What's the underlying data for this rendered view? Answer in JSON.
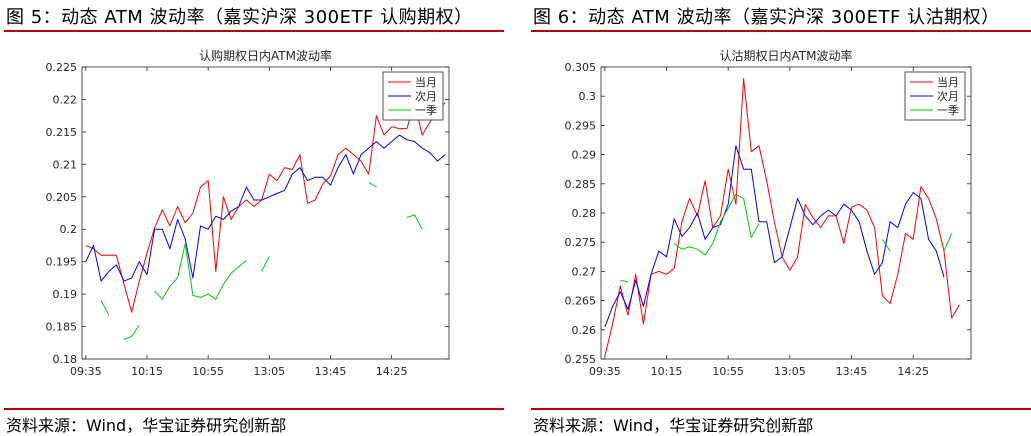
{
  "panels": [
    {
      "figure_title": "图 5：动态 ATM 波动率（嘉实沪深 300ETF 认购期权）",
      "source": "资料来源：Wind，华宝证券研究创新部"
    },
    {
      "figure_title": "图 6：动态 ATM 波动率（嘉实沪深 300ETF 认沽期权）",
      "source": "资料来源：Wind，华宝证券研究创新部"
    }
  ],
  "chart_data": [
    {
      "type": "line",
      "title": "认购期权日内ATM波动率",
      "xlabel": "",
      "ylabel": "",
      "x_tick_labels": [
        "09:35",
        "10:15",
        "10:55",
        "13:05",
        "13:45",
        "14:25"
      ],
      "x_tick_positions": [
        0,
        8,
        16,
        24,
        32,
        40
      ],
      "xlim": [
        -0.5,
        47.5
      ],
      "ylim": [
        0.18,
        0.225
      ],
      "y_ticks": [
        0.18,
        0.185,
        0.19,
        0.195,
        0.2,
        0.205,
        0.21,
        0.215,
        0.22,
        0.225
      ],
      "y_tick_labels": [
        "0.18",
        "0.185",
        "0.19",
        "0.195",
        "0.2",
        "0.205",
        "0.21",
        "0.215",
        "0.22",
        "0.225"
      ],
      "legend_position": "top-right",
      "series": [
        {
          "name": "当月",
          "color": "#ff0000",
          "values": [
            0.1975,
            0.197,
            0.196,
            0.196,
            0.196,
            0.1915,
            0.1872,
            0.192,
            0.1963,
            0.2002,
            0.203,
            0.2005,
            0.2035,
            0.201,
            0.2025,
            0.2065,
            0.2075,
            0.1935,
            0.205,
            0.2015,
            0.2035,
            0.2045,
            0.2035,
            0.2045,
            0.2085,
            0.2075,
            0.2095,
            0.2092,
            0.2115,
            0.204,
            0.2045,
            0.207,
            0.2082,
            0.2115,
            0.2125,
            0.2115,
            0.2105,
            0.2085,
            0.2175,
            0.2145,
            0.2158,
            0.2155,
            0.2155,
            0.2195,
            0.2145,
            0.2165,
            0.2185,
            0.2195
          ]
        },
        {
          "name": "次月",
          "color": "#0000ff",
          "values": [
            0.195,
            0.1975,
            0.192,
            0.1935,
            0.1945,
            0.192,
            0.1925,
            0.195,
            0.193,
            0.2,
            0.2,
            0.197,
            0.2015,
            0.1985,
            0.1925,
            0.2005,
            0.2,
            0.202,
            0.2015,
            0.2028,
            0.2035,
            0.2065,
            0.2045,
            0.2045,
            0.205,
            0.2055,
            0.206,
            0.2085,
            0.2095,
            0.2075,
            0.208,
            0.208,
            0.2068,
            0.2095,
            0.2115,
            0.2085,
            0.2115,
            0.2125,
            0.2135,
            0.2125,
            0.2135,
            0.2145,
            0.2138,
            0.2135,
            0.2125,
            0.2118,
            0.2105,
            0.2115
          ]
        },
        {
          "name": "一季",
          "color": "#00cc00",
          "values": [
            null,
            null,
            0.189,
            0.1868,
            null,
            0.183,
            0.1835,
            0.1852,
            null,
            0.1905,
            0.1892,
            0.1912,
            0.1925,
            0.1978,
            0.1898,
            0.1895,
            0.19,
            0.1892,
            0.1915,
            0.1932,
            0.1942,
            0.1952,
            null,
            0.1935,
            0.1958,
            null,
            null,
            null,
            null,
            null,
            null,
            null,
            null,
            null,
            null,
            null,
            null,
            0.2072,
            0.2065,
            null,
            null,
            null,
            0.2018,
            0.2022,
            0.2,
            null,
            null,
            null
          ]
        }
      ]
    },
    {
      "type": "line",
      "title": "认沽期权日内ATM波动率",
      "xlabel": "",
      "ylabel": "",
      "x_tick_labels": [
        "09:35",
        "10:15",
        "10:55",
        "13:05",
        "13:45",
        "14:25"
      ],
      "x_tick_positions": [
        0,
        8,
        16,
        24,
        32,
        40
      ],
      "xlim": [
        -0.5,
        47.5
      ],
      "ylim": [
        0.255,
        0.305
      ],
      "y_ticks": [
        0.255,
        0.26,
        0.265,
        0.27,
        0.275,
        0.28,
        0.285,
        0.29,
        0.295,
        0.3,
        0.305
      ],
      "y_tick_labels": [
        "0.255",
        "0.26",
        "0.265",
        "0.27",
        "0.275",
        "0.28",
        "0.285",
        "0.29",
        "0.295",
        "0.3",
        "0.305"
      ],
      "legend_position": "top-right",
      "series": [
        {
          "name": "当月",
          "color": "#ff0000",
          "values": [
            0.2555,
            0.261,
            0.2675,
            0.2625,
            0.2695,
            0.261,
            0.2695,
            0.27,
            0.2695,
            0.2705,
            0.2785,
            0.2825,
            0.2795,
            0.2855,
            0.2775,
            0.2795,
            0.2875,
            0.2815,
            0.303,
            0.2905,
            0.2915,
            0.2855,
            0.2785,
            0.2725,
            0.2702,
            0.2725,
            0.2815,
            0.2792,
            0.2775,
            0.2795,
            0.2795,
            0.2748,
            0.281,
            0.2815,
            0.2805,
            0.2775,
            0.2658,
            0.2645,
            0.2695,
            0.2765,
            0.2755,
            0.2845,
            0.2825,
            0.279,
            0.2735,
            0.262,
            0.2643,
            null
          ]
        },
        {
          "name": "次月",
          "color": "#0000ff",
          "values": [
            0.2605,
            0.264,
            0.2665,
            0.2635,
            0.2685,
            0.264,
            0.2695,
            0.2735,
            0.2725,
            0.279,
            0.276,
            0.2775,
            0.28,
            0.2755,
            0.2775,
            0.278,
            0.2815,
            0.2915,
            0.2875,
            0.2875,
            0.2785,
            0.2785,
            0.2715,
            0.2725,
            0.2775,
            0.2825,
            0.2795,
            0.278,
            0.2795,
            0.2805,
            0.2795,
            0.2815,
            0.2805,
            0.2785,
            0.2735,
            0.2695,
            0.2715,
            0.2785,
            0.2775,
            0.2815,
            0.2835,
            0.2825,
            0.2755,
            0.2735,
            0.269,
            null,
            null,
            null
          ]
        },
        {
          "name": "一季",
          "color": "#00cc00",
          "values": [
            null,
            null,
            0.2685,
            0.2682,
            null,
            0.2688,
            null,
            null,
            null,
            0.2748,
            0.2738,
            0.2742,
            0.2738,
            0.2728,
            0.2748,
            0.2785,
            0.2808,
            0.2832,
            0.2825,
            0.2758,
            0.2782,
            null,
            null,
            null,
            null,
            null,
            null,
            null,
            0.2782,
            null,
            null,
            null,
            null,
            null,
            null,
            null,
            0.2755,
            0.2735,
            null,
            null,
            null,
            null,
            null,
            null,
            0.2735,
            0.2765,
            null,
            null
          ]
        }
      ]
    }
  ]
}
